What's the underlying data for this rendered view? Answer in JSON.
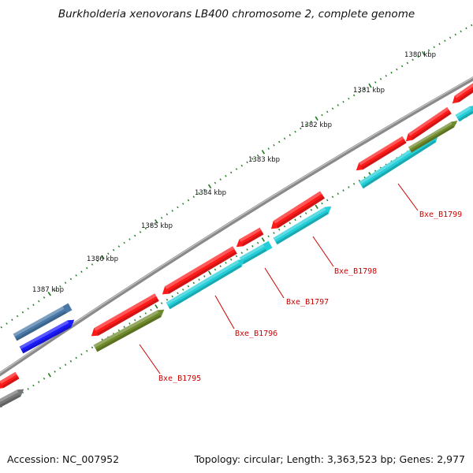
{
  "title": "Burkholderia xenovorans LB400 chromosome 2, complete genome",
  "footer": {
    "accession": "Accession: NC_007952",
    "summary": "Topology: circular; Length: 3,363,523 bp; Genes: 2,977"
  },
  "chart_data": {
    "type": "genome-map",
    "scale_labels": [
      "1380 kbp",
      "1381 kbp",
      "1382 kbp",
      "1383 kbp",
      "1384 kbp",
      "1385 kbp",
      "1386 kbp",
      "1387 kbp"
    ],
    "gene_labels": [
      "Bxe_B1795",
      "Bxe_B1796",
      "Bxe_B1797",
      "Bxe_B1798",
      "Bxe_B1799"
    ]
  },
  "colors": {
    "red": "#ff1a1a",
    "cyan": "#22cfd8",
    "olive": "#6f8a2a",
    "blue": "#1a1aff",
    "steel": "#4a79a8",
    "gray": "#777777",
    "label": "#cc0000",
    "tick": "#1e7a1e"
  }
}
